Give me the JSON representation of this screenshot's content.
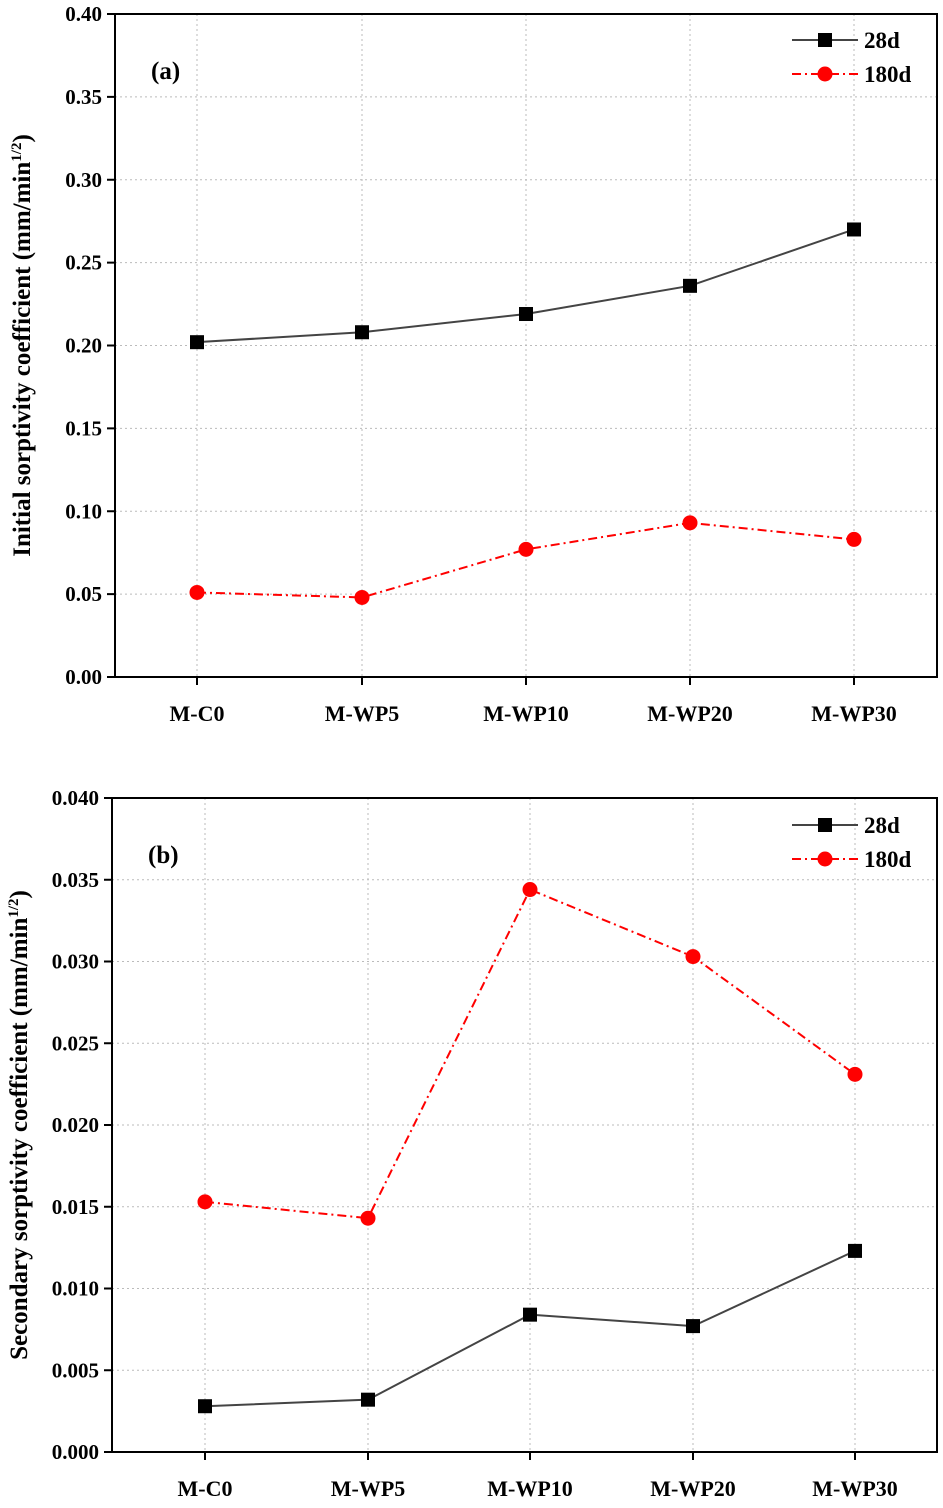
{
  "chart_data": [
    {
      "type": "line",
      "panel_label": "(a)",
      "ylabel": "Initial sorptivity coefficient (mm/min",
      "ylabel_sup": "1/2",
      "ylabel_close": ")",
      "categories": [
        "M-C0",
        "M-WP5",
        "M-WP10",
        "M-WP20",
        "M-WP30"
      ],
      "ylim": [
        0,
        0.4
      ],
      "yticks": [
        "0.00",
        "0.05",
        "0.10",
        "0.15",
        "0.20",
        "0.25",
        "0.30",
        "0.35",
        "0.40"
      ],
      "grid": true,
      "legend_position": "top-right",
      "series": [
        {
          "name": "28d",
          "color": "#000000",
          "line_color": "#444444",
          "marker": "square",
          "dash": "solid",
          "values": [
            0.202,
            0.208,
            0.219,
            0.236,
            0.27
          ]
        },
        {
          "name": "180d",
          "color": "#ff0000",
          "line_color": "#ff0000",
          "marker": "circle",
          "dash": "dashdot",
          "values": [
            0.051,
            0.048,
            0.077,
            0.093,
            0.083
          ]
        }
      ]
    },
    {
      "type": "line",
      "panel_label": "(b)",
      "ylabel": "Secondary sorptivity coefficient (mm/min",
      "ylabel_sup": "1/2",
      "ylabel_close": ")",
      "categories": [
        "M-C0",
        "M-WP5",
        "M-WP10",
        "M-WP20",
        "M-WP30"
      ],
      "ylim": [
        0,
        0.04
      ],
      "yticks": [
        "0.000",
        "0.005",
        "0.010",
        "0.015",
        "0.020",
        "0.025",
        "0.030",
        "0.035",
        "0.040"
      ],
      "grid": true,
      "legend_position": "top-right",
      "series": [
        {
          "name": "28d",
          "color": "#000000",
          "line_color": "#444444",
          "marker": "square",
          "dash": "solid",
          "values": [
            0.0028,
            0.0032,
            0.0084,
            0.0077,
            0.0123
          ]
        },
        {
          "name": "180d",
          "color": "#ff0000",
          "line_color": "#ff0000",
          "marker": "circle",
          "dash": "dashdot",
          "values": [
            0.0153,
            0.0143,
            0.0344,
            0.0303,
            0.0231
          ]
        }
      ]
    }
  ]
}
